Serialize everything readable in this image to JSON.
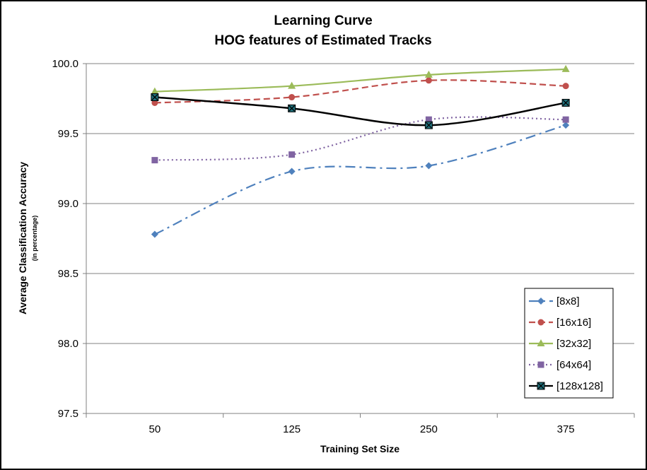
{
  "chart_data": {
    "type": "line",
    "title": [
      "Learning Curve",
      "HOG features of Estimated Tracks"
    ],
    "xlabel": "Training Set Size",
    "ylabel": "Average Classification Accuracy",
    "ylabel_sub": "(in percentage)",
    "categories": [
      "50",
      "125",
      "250",
      "375"
    ],
    "ylim": [
      97.5,
      100.0
    ],
    "yticks": [
      "97.5",
      "98.0",
      "98.5",
      "99.0",
      "99.5",
      "100.0"
    ],
    "grid": true,
    "legend_position": "bottom-right",
    "series": [
      {
        "name": "[8x8]",
        "values": [
          98.78,
          99.23,
          99.27,
          99.56
        ],
        "color": "#4f81bd",
        "dash": "dash-dot",
        "marker": "diamond"
      },
      {
        "name": "[16x16]",
        "values": [
          99.72,
          99.76,
          99.88,
          99.84
        ],
        "color": "#c0504d",
        "dash": "dash",
        "marker": "circle"
      },
      {
        "name": "[32x32]",
        "values": [
          99.8,
          99.84,
          99.92,
          99.96
        ],
        "color": "#9bbb59",
        "dash": "solid",
        "marker": "triangle"
      },
      {
        "name": "[64x64]",
        "values": [
          99.31,
          99.35,
          99.6,
          99.6
        ],
        "color": "#8064a2",
        "dash": "dot",
        "marker": "square"
      },
      {
        "name": "[128x128]",
        "values": [
          99.76,
          99.68,
          99.56,
          99.72
        ],
        "color": "#000000",
        "dash": "solid",
        "marker": "star-square"
      }
    ]
  }
}
